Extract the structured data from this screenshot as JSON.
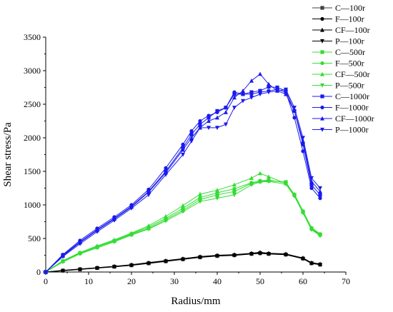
{
  "chart_data": {
    "type": "line",
    "xlabel": "Radius/mm",
    "ylabel": "Shear stress/Pa",
    "xlim": [
      0,
      70
    ],
    "ylim": [
      0,
      3500
    ],
    "xticks": [
      "0",
      "10",
      "20",
      "30",
      "40",
      "50",
      "60",
      "70"
    ],
    "yticks": [
      "0",
      "500",
      "1000",
      "1500",
      "2000",
      "2500",
      "3000",
      "3500"
    ],
    "grid": false,
    "legend_position": "top-right",
    "series": [
      {
        "name": "C—100r",
        "color": "#404040",
        "marker": "square",
        "x": [
          0,
          4,
          8,
          12,
          16,
          20,
          24,
          28,
          32,
          36,
          40,
          44,
          48,
          50,
          52,
          56,
          60,
          62,
          64
        ],
        "y": [
          0,
          20,
          40,
          60,
          80,
          100,
          130,
          160,
          190,
          220,
          240,
          250,
          270,
          280,
          270,
          260,
          200,
          130,
          110
        ]
      },
      {
        "name": "F—100r",
        "color": "#000000",
        "marker": "circle",
        "x": [
          0,
          4,
          8,
          12,
          16,
          20,
          24,
          28,
          32,
          36,
          40,
          44,
          48,
          50,
          52,
          56,
          60,
          62,
          64
        ],
        "y": [
          0,
          22,
          42,
          62,
          82,
          105,
          135,
          165,
          195,
          225,
          245,
          255,
          275,
          285,
          275,
          265,
          205,
          135,
          115
        ]
      },
      {
        "name": "CF—100r",
        "color": "#000000",
        "marker": "triangle-up",
        "x": [
          0,
          4,
          8,
          12,
          16,
          20,
          24,
          28,
          32,
          36,
          40,
          44,
          48,
          50,
          52,
          56,
          60,
          62,
          64
        ],
        "y": [
          0,
          25,
          45,
          65,
          85,
          110,
          140,
          170,
          200,
          230,
          250,
          260,
          280,
          295,
          280,
          270,
          210,
          140,
          120
        ]
      },
      {
        "name": "P—100r",
        "color": "#000000",
        "marker": "triangle-down",
        "x": [
          0,
          4,
          8,
          12,
          16,
          20,
          24,
          28,
          32,
          36,
          40,
          44,
          48,
          50,
          52,
          56,
          60,
          62,
          64
        ],
        "y": [
          0,
          18,
          38,
          58,
          78,
          100,
          128,
          158,
          188,
          218,
          238,
          248,
          268,
          278,
          268,
          258,
          198,
          128,
          108
        ]
      },
      {
        "name": "C—500r",
        "color": "#33dd33",
        "marker": "square",
        "x": [
          0,
          4,
          8,
          12,
          16,
          20,
          24,
          28,
          32,
          36,
          40,
          44,
          48,
          50,
          52,
          56,
          58,
          60,
          62,
          64
        ],
        "y": [
          0,
          160,
          280,
          370,
          460,
          560,
          650,
          780,
          920,
          1080,
          1150,
          1200,
          1320,
          1350,
          1360,
          1340,
          1150,
          900,
          650,
          560
        ]
      },
      {
        "name": "F—500r",
        "color": "#33dd33",
        "marker": "circle",
        "x": [
          0,
          4,
          8,
          12,
          16,
          20,
          24,
          28,
          32,
          36,
          40,
          44,
          48,
          50,
          52,
          56,
          58,
          60,
          62,
          64
        ],
        "y": [
          0,
          165,
          285,
          380,
          470,
          570,
          670,
          800,
          950,
          1110,
          1180,
          1240,
          1330,
          1360,
          1370,
          1330,
          1140,
          890,
          640,
          550
        ]
      },
      {
        "name": "CF—500r",
        "color": "#33dd33",
        "marker": "triangle-up",
        "x": [
          0,
          4,
          8,
          12,
          16,
          20,
          24,
          28,
          32,
          36,
          40,
          44,
          48,
          50,
          52,
          56,
          58,
          60,
          62,
          64
        ],
        "y": [
          0,
          170,
          290,
          390,
          480,
          580,
          690,
          830,
          990,
          1160,
          1220,
          1300,
          1400,
          1470,
          1420,
          1320,
          1160,
          910,
          660,
          570
        ]
      },
      {
        "name": "P—500r",
        "color": "#33dd33",
        "marker": "triangle-down",
        "x": [
          0,
          4,
          8,
          12,
          16,
          20,
          24,
          28,
          32,
          36,
          40,
          44,
          48,
          50,
          52,
          56,
          58,
          60,
          62,
          64
        ],
        "y": [
          0,
          150,
          270,
          360,
          450,
          550,
          640,
          760,
          900,
          1050,
          1100,
          1150,
          1300,
          1340,
          1350,
          1310,
          1130,
          880,
          630,
          540
        ]
      },
      {
        "name": "C—1000r",
        "color": "#1a1aee",
        "marker": "square",
        "x": [
          0,
          4,
          8,
          12,
          16,
          20,
          24,
          28,
          32,
          34,
          36,
          38,
          40,
          42,
          44,
          46,
          48,
          50,
          52,
          54,
          56,
          58,
          60,
          62,
          64
        ],
        "y": [
          0,
          250,
          450,
          630,
          800,
          980,
          1200,
          1500,
          1850,
          2050,
          2200,
          2300,
          2400,
          2450,
          2650,
          2650,
          2680,
          2700,
          2760,
          2750,
          2700,
          2400,
          1900,
          1300,
          1150
        ]
      },
      {
        "name": "F—1000r",
        "color": "#1a1aee",
        "marker": "circle",
        "x": [
          0,
          4,
          8,
          12,
          16,
          20,
          24,
          28,
          32,
          34,
          36,
          38,
          40,
          42,
          44,
          46,
          48,
          50,
          52,
          54,
          56,
          58,
          60,
          62,
          64
        ],
        "y": [
          0,
          260,
          470,
          650,
          820,
          1000,
          1230,
          1550,
          1900,
          2100,
          2250,
          2330,
          2380,
          2450,
          2680,
          2650,
          2650,
          2680,
          2700,
          2720,
          2680,
          2300,
          1800,
          1250,
          1100
        ]
      },
      {
        "name": "CF—1000r",
        "color": "#1a1aee",
        "marker": "triangle-up",
        "x": [
          0,
          4,
          8,
          12,
          16,
          20,
          24,
          28,
          32,
          34,
          36,
          38,
          40,
          42,
          44,
          46,
          48,
          50,
          52,
          54,
          56,
          58,
          60,
          62,
          64
        ],
        "y": [
          0,
          240,
          440,
          620,
          790,
          970,
          1190,
          1480,
          1820,
          2000,
          2150,
          2250,
          2300,
          2380,
          2600,
          2700,
          2850,
          2950,
          2800,
          2700,
          2650,
          2400,
          1950,
          1350,
          1200
        ]
      },
      {
        "name": "P—1000r",
        "color": "#1a1aee",
        "marker": "triangle-down",
        "x": [
          0,
          4,
          8,
          12,
          16,
          20,
          24,
          28,
          32,
          34,
          36,
          38,
          40,
          42,
          44,
          46,
          48,
          50,
          52,
          54,
          56,
          58,
          60,
          62,
          64
        ],
        "y": [
          0,
          230,
          420,
          600,
          770,
          950,
          1150,
          1450,
          1750,
          1950,
          2150,
          2150,
          2150,
          2200,
          2450,
          2550,
          2600,
          2650,
          2680,
          2700,
          2720,
          2450,
          2000,
          1400,
          1250
        ]
      }
    ]
  }
}
